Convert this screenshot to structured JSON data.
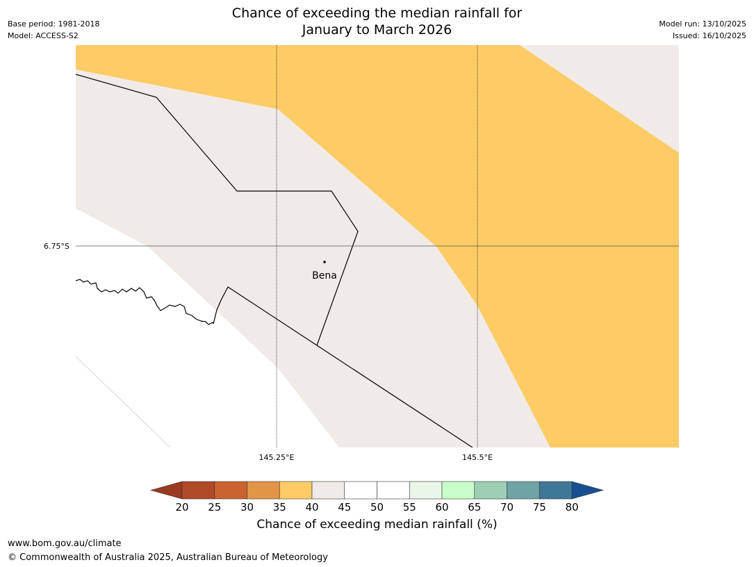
{
  "header": {
    "base_period": "Base period: 1981-2018",
    "model": "Model: ACCESS-S2",
    "model_run": "Model run: 13/10/2025",
    "issued": "Issued: 16/10/2025",
    "title_line1": "Chance of exceeding the median rainfall for",
    "title_line2": "January to March 2026"
  },
  "map": {
    "lat_labels": [
      "6.75°S"
    ],
    "lon_labels": [
      "145.25°E",
      "145.5°E"
    ],
    "place": {
      "name": "Bena"
    },
    "colors": {
      "band_30_35": "#fecb66",
      "band_35_40": "#f0ebe6",
      "band_40_55": "#ffffff",
      "boundary": "#000000",
      "gridline": "#555555"
    }
  },
  "colorbar": {
    "ticks": [
      "20",
      "25",
      "30",
      "35",
      "40",
      "45",
      "50",
      "55",
      "60",
      "65",
      "70",
      "75",
      "80"
    ],
    "colors": [
      "#9b3a22",
      "#b04a27",
      "#cb6331",
      "#e39446",
      "#fecb66",
      "#f0ebe6",
      "#ffffff",
      "#ffffff",
      "#eaf6ea",
      "#c8fec8",
      "#9dcfb6",
      "#6fa4a4",
      "#3f7798",
      "#175090"
    ],
    "label": "Chance of exceeding median rainfall (%)"
  },
  "footer": {
    "url": "www.bom.gov.au/climate",
    "copyright": "© Commonwealth of Australia 2025, Australian Bureau of Meteorology"
  }
}
